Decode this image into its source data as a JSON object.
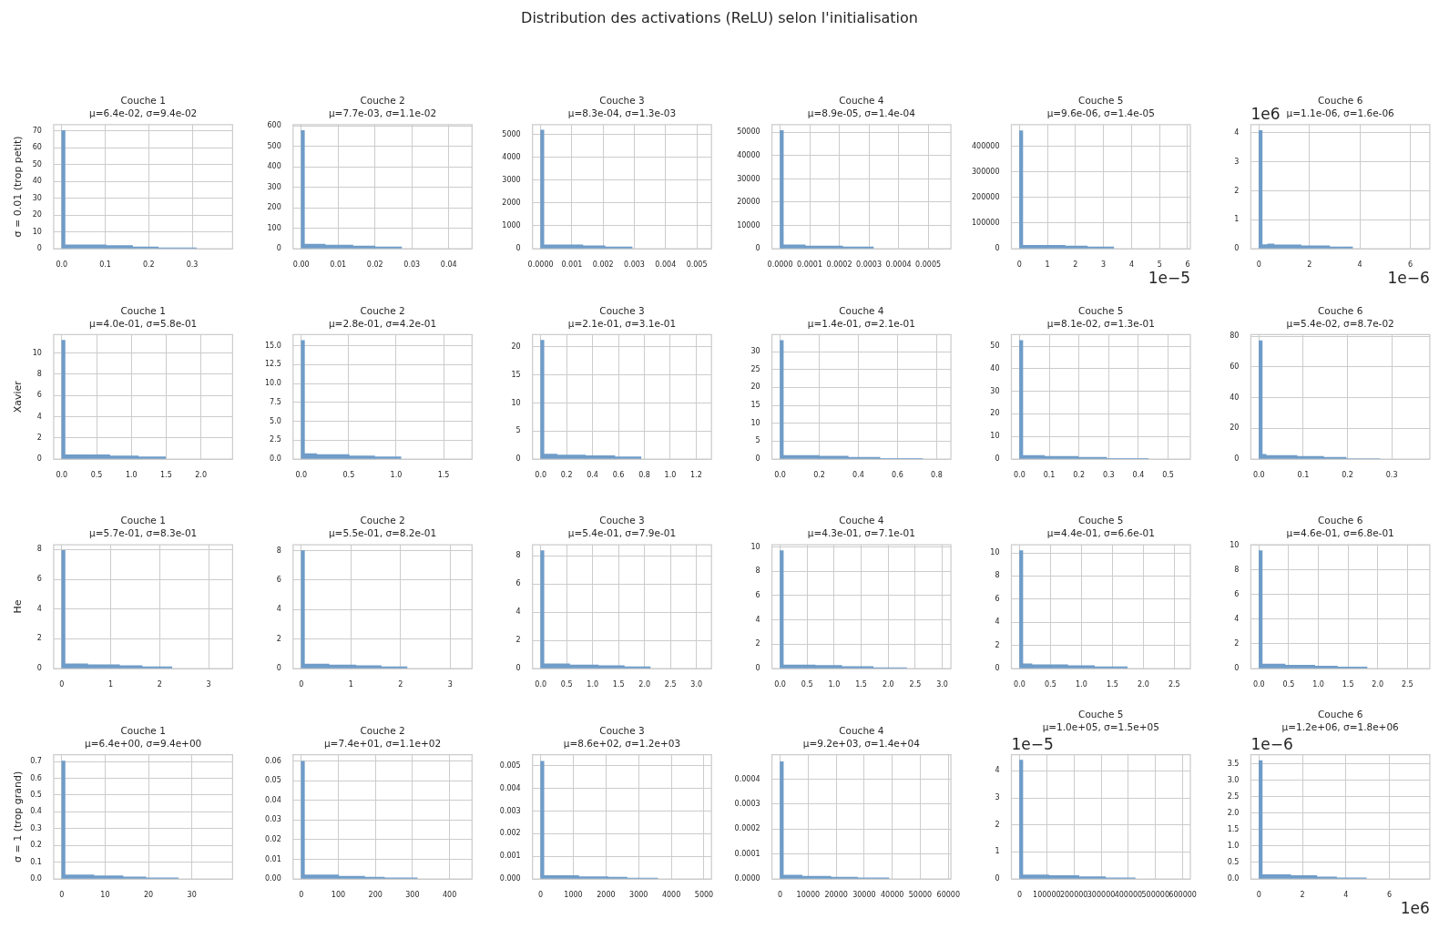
{
  "chart_data": [
    {
      "type": "other",
      "title": "Distribution des activations (ReLU) selon l'initialisation"
    },
    {
      "type": "histogram",
      "title": "Couche 1\nμ=6.4e-02, σ=9.4e-02",
      "ylabel": "σ = 0.01 (trop petit)",
      "bins": [
        0,
        0.0075,
        0.102,
        0.163,
        0.222,
        0.31
      ],
      "values": [
        70.3,
        2.3,
        1.8,
        1.1,
        0.5
      ],
      "color": "#6f9cc8",
      "xlim": [
        -0.0187,
        0.393
      ],
      "xticks": [
        {
          "value": 0,
          "label": "0.0"
        },
        0.1,
        0.2,
        0.3
      ],
      "ylim": [
        0,
        73.8
      ],
      "yticks": [
        0,
        10,
        20,
        30,
        40,
        50,
        60,
        70
      ],
      "grid": true
    },
    {
      "type": "histogram",
      "title": "Couche 2\nμ=7.7e-03, σ=1.1e-02",
      "bins": [
        0,
        0.00088,
        0.0065,
        0.014,
        0.02,
        0.0272
      ],
      "values": [
        578,
        22,
        18,
        13,
        9
      ],
      "color": "#6f9cc8",
      "xlim": [
        -0.0022,
        0.0463
      ],
      "xticks": [
        {
          "value": 0,
          "label": "0.00"
        },
        0.01,
        0.02,
        0.03,
        0.04
      ],
      "ylim": [
        0,
        607
      ],
      "yticks": [
        0,
        100,
        200,
        300,
        400,
        500,
        600
      ],
      "grid": true
    },
    {
      "type": "histogram",
      "title": "Couche 3\nμ=8.3e-04, σ=1.3e-03",
      "bins": [
        0,
        0.000104,
        0.00135,
        0.00206,
        0.00293
      ],
      "values": [
        5200,
        170,
        130,
        80
      ],
      "color": "#6f9cc8",
      "xlim": [
        -0.00026,
        0.00547
      ],
      "xticks": [
        {
          "value": 0,
          "label": "0.0000"
        },
        0.001,
        0.002,
        0.003,
        0.004,
        0.005
      ],
      "ylim": [
        0,
        5444
      ],
      "yticks": [
        0,
        1000,
        2000,
        3000,
        4000,
        5000
      ],
      "grid": true
    },
    {
      "type": "histogram",
      "title": "Couche 4\nμ=8.9e-05, σ=1.4e-04",
      "bins": [
        0,
        1.1e-05,
        8.5e-05,
        0.000211,
        0.000315
      ],
      "values": [
        50800,
        1600,
        1100,
        800
      ],
      "color": "#6f9cc8",
      "xlim": [
        -2.75e-05,
        0.000577
      ],
      "xticks": [
        {
          "value": 0,
          "label": "0.0000"
        },
        0.0001,
        0.0002,
        0.0003,
        0.0004,
        0.0005
      ],
      "ylim": [
        0,
        53360
      ],
      "yticks": [
        0,
        10000,
        20000,
        30000,
        40000,
        50000
      ],
      "grid": true
    },
    {
      "type": "histogram",
      "title": "Couche 5\nμ=9.6e-06, σ=1.4e-05",
      "xlabel": "1e−5",
      "bins": [
        0,
        0.116,
        1.63,
        2.42,
        3.36
      ],
      "values": [
        460000,
        13000,
        10000,
        7000
      ],
      "color": "#6f9cc8",
      "xlim": [
        -0.29,
        6.1
      ],
      "xticks": [
        0,
        1,
        2,
        3,
        4,
        5,
        6
      ],
      "ylim": [
        0,
        484300
      ],
      "yticks": [
        0,
        100000,
        200000,
        300000,
        400000
      ],
      "grid": true
    },
    {
      "type": "histogram",
      "title": "Couche 6\nμ=1.1e-06, σ=1.6e-06",
      "xlabel": "1e−6",
      "ylabel": "1e6",
      "bins": [
        0,
        0.129,
        0.35,
        0.6,
        1.67,
        2.8,
        3.71
      ],
      "values": [
        4.08,
        0.14,
        0.16,
        0.13,
        0.1,
        0.06
      ],
      "color": "#6f9cc8",
      "xlim": [
        -0.32,
        6.77
      ],
      "xticks": [
        0,
        2,
        4,
        6
      ],
      "ylim": [
        0,
        4.286
      ],
      "yticks": [
        0,
        1,
        2,
        3,
        4
      ],
      "grid": true
    },
    {
      "type": "histogram",
      "title": "Couche 1\nμ=4.0e-01, σ=5.8e-01",
      "ylabel": "Xavier",
      "bins": [
        0,
        0.0468,
        0.368,
        0.69,
        1.1,
        1.49
      ],
      "values": [
        11.2,
        0.4,
        0.4,
        0.3,
        0.2
      ],
      "color": "#6f9cc8",
      "xlim": [
        -0.117,
        2.455
      ],
      "xticks": [
        {
          "value": 0,
          "label": "0.0"
        },
        0.5,
        {
          "value": 1,
          "label": "1.0"
        },
        1.5,
        {
          "value": 2,
          "label": "2.0"
        }
      ],
      "ylim": [
        0,
        11.74
      ],
      "yticks": [
        0,
        2,
        4,
        6,
        8,
        10
      ],
      "grid": true
    },
    {
      "type": "histogram",
      "title": "Couche 2\nμ=2.8e-01, σ=4.2e-01",
      "bins": [
        0,
        0.0343,
        0.163,
        0.505,
        0.774,
        1.05
      ],
      "values": [
        15.7,
        0.7,
        0.6,
        0.4,
        0.3
      ],
      "color": "#6f9cc8",
      "xlim": [
        -0.086,
        1.8
      ],
      "xticks": [
        {
          "value": 0,
          "label": "0.0"
        },
        0.5,
        {
          "value": 1,
          "label": "1.0"
        },
        1.5
      ],
      "ylim": [
        0,
        16.46
      ],
      "yticks": [
        {
          "value": 0,
          "label": "0.0"
        },
        2.5,
        {
          "value": 5,
          "label": "5.0"
        },
        7.5,
        {
          "value": 10,
          "label": "10.0"
        },
        12.5,
        {
          "value": 15,
          "label": "15.0"
        }
      ],
      "grid": true
    },
    {
      "type": "histogram",
      "title": "Couche 3\nμ=2.1e-01, σ=3.1e-01",
      "bins": [
        0,
        0.0251,
        0.126,
        0.345,
        0.572,
        0.774
      ],
      "values": [
        21.2,
        0.9,
        0.7,
        0.6,
        0.4
      ],
      "color": "#6f9cc8",
      "xlim": [
        -0.063,
        1.318
      ],
      "xticks": [
        {
          "value": 0,
          "label": "0.0"
        },
        0.2,
        0.4,
        0.6,
        0.8,
        {
          "value": 1,
          "label": "1.0"
        },
        1.2
      ],
      "ylim": [
        0,
        22.2
      ],
      "yticks": [
        0,
        5,
        10,
        15,
        20
      ],
      "grid": true
    },
    {
      "type": "histogram",
      "title": "Couche 4\nμ=1.4e-01, σ=2.1e-01",
      "bins": [
        0,
        0.0166,
        0.2,
        0.348,
        0.51,
        0.728
      ],
      "values": [
        33.1,
        1,
        0.8,
        0.5,
        0.2
      ],
      "color": "#6f9cc8",
      "xlim": [
        -0.0415,
        0.873
      ],
      "xticks": [
        {
          "value": 0,
          "label": "0.0"
        },
        0.2,
        0.4,
        0.6,
        0.8
      ],
      "ylim": [
        0,
        34.75
      ],
      "yticks": [
        0,
        5,
        10,
        15,
        20,
        25,
        30
      ],
      "grid": true
    },
    {
      "type": "histogram",
      "title": "Couche 5\nμ=8.1e-02, σ=1.3e-01",
      "bins": [
        0,
        0.011,
        0.084,
        0.197,
        0.293,
        0.433
      ],
      "values": [
        52.5,
        1.6,
        1.2,
        0.8,
        0.3
      ],
      "color": "#6f9cc8",
      "xlim": [
        -0.0274,
        0.575
      ],
      "xticks": [
        {
          "value": 0,
          "label": "0.0"
        },
        0.1,
        0.2,
        0.3,
        0.4,
        0.5
      ],
      "ylim": [
        0,
        55.1
      ],
      "yticks": [
        0,
        10,
        20,
        30,
        40,
        50
      ],
      "grid": true
    },
    {
      "type": "histogram",
      "title": "Couche 6\nμ=5.4e-02, σ=8.7e-02",
      "bins": [
        0,
        0.00736,
        0.016,
        0.086,
        0.146,
        0.197,
        0.273
      ],
      "values": [
        77.2,
        3,
        2.4,
        1.8,
        1.2,
        0.3
      ],
      "color": "#6f9cc8",
      "xlim": [
        -0.0184,
        0.386
      ],
      "xticks": [
        {
          "value": 0,
          "label": "0.0"
        },
        0.1,
        0.2,
        0.3
      ],
      "ylim": [
        0,
        81.1
      ],
      "yticks": [
        0,
        20,
        40,
        60,
        80
      ],
      "grid": true
    },
    {
      "type": "histogram",
      "title": "Couche 1\nμ=5.7e-01, σ=8.3e-01",
      "ylabel": "He",
      "bins": [
        0,
        0.0665,
        0.53,
        1.18,
        1.64,
        2.25
      ],
      "values": [
        7.94,
        0.31,
        0.25,
        0.19,
        0.12
      ],
      "color": "#6f9cc8",
      "xlim": [
        -0.166,
        3.49
      ],
      "xticks": [
        0,
        1,
        2,
        3
      ],
      "ylim": [
        0,
        8.33
      ],
      "yticks": [
        0,
        2,
        4,
        6,
        8
      ],
      "grid": true
    },
    {
      "type": "histogram",
      "title": "Couche 2\nμ=5.5e-01, σ=8.2e-01",
      "bins": [
        0,
        0.0656,
        0.56,
        1.1,
        1.61,
        2.13
      ],
      "values": [
        8.01,
        0.31,
        0.25,
        0.19,
        0.12
      ],
      "color": "#6f9cc8",
      "xlim": [
        -0.164,
        3.44
      ],
      "xticks": [
        0,
        1,
        2,
        3
      ],
      "ylim": [
        0,
        8.41
      ],
      "yticks": [
        0,
        2,
        4,
        6,
        8
      ],
      "grid": true
    },
    {
      "type": "histogram",
      "title": "Couche 3\nμ=5.4e-01, σ=7.9e-01",
      "bins": [
        0,
        0.0629,
        0.56,
        1.11,
        1.61,
        2.11
      ],
      "values": [
        8.36,
        0.33,
        0.26,
        0.2,
        0.13
      ],
      "color": "#6f9cc8",
      "xlim": [
        -0.157,
        3.29
      ],
      "xticks": [
        {
          "value": 0,
          "label": "0.0"
        },
        0.5,
        {
          "value": 1,
          "label": "1.0"
        },
        1.5,
        {
          "value": 2,
          "label": "2.0"
        },
        2.5,
        {
          "value": 3,
          "label": "3.0"
        }
      ],
      "ylim": [
        0,
        8.78
      ],
      "yticks": [
        0,
        2,
        4,
        6,
        8
      ],
      "grid": true
    },
    {
      "type": "histogram",
      "title": "Couche 4\nμ=4.3e-01, σ=7.1e-01",
      "bins": [
        0,
        0.0602,
        0.65,
        1.14,
        1.72,
        2.34
      ],
      "values": [
        9.7,
        0.3,
        0.25,
        0.17,
        0.07
      ],
      "color": "#6f9cc8",
      "xlim": [
        -0.15,
        3.16
      ],
      "xticks": [
        {
          "value": 0,
          "label": "0.0"
        },
        0.5,
        {
          "value": 1,
          "label": "1.0"
        },
        1.5,
        {
          "value": 2,
          "label": "2.0"
        },
        2.5,
        {
          "value": 3,
          "label": "3.0"
        }
      ],
      "ylim": [
        0,
        10.19
      ],
      "yticks": [
        0,
        2,
        4,
        6,
        8,
        10
      ],
      "grid": true
    },
    {
      "type": "histogram",
      "title": "Couche 5\nμ=4.4e-01, σ=6.6e-01",
      "bins": [
        0,
        0.0526,
        0.2,
        0.78,
        1.21,
        1.74
      ],
      "values": [
        10.2,
        0.4,
        0.32,
        0.24,
        0.16
      ],
      "color": "#6f9cc8",
      "xlim": [
        -0.132,
        2.76
      ],
      "xticks": [
        {
          "value": 0,
          "label": "0.0"
        },
        0.5,
        {
          "value": 1,
          "label": "1.0"
        },
        1.5,
        {
          "value": 2,
          "label": "2.0"
        },
        2.5
      ],
      "ylim": [
        0,
        10.71
      ],
      "yticks": [
        0,
        2,
        4,
        6,
        8,
        10
      ],
      "grid": true
    },
    {
      "type": "histogram",
      "title": "Couche 6\nμ=4.6e-01, σ=6.8e-01",
      "bins": [
        0,
        0.0548,
        0.44,
        0.94,
        1.32,
        1.82
      ],
      "values": [
        9.56,
        0.37,
        0.28,
        0.2,
        0.13
      ],
      "color": "#6f9cc8",
      "xlim": [
        -0.137,
        2.877
      ],
      "xticks": [
        {
          "value": 0,
          "label": "0.0"
        },
        0.5,
        {
          "value": 1,
          "label": "1.0"
        },
        1.5,
        {
          "value": 2,
          "label": "2.0"
        },
        2.5
      ],
      "ylim": [
        0,
        10.04
      ],
      "yticks": [
        0,
        2,
        4,
        6,
        8,
        10
      ],
      "grid": true
    },
    {
      "type": "histogram",
      "title": "Couche 1\nμ=6.4e+00, σ=9.4e+00",
      "ylabel": "σ = 1 (trop grand)",
      "bins": [
        0,
        0.75,
        7.4,
        14.1,
        19.4,
        26.9
      ],
      "values": [
        0.702,
        0.024,
        0.018,
        0.012,
        0.006
      ],
      "color": "#6f9cc8",
      "xlim": [
        -1.88,
        39.4
      ],
      "xticks": [
        0,
        10,
        20,
        30
      ],
      "ylim": [
        0,
        0.7405
      ],
      "yticks": [
        {
          "value": 0,
          "label": "0.0"
        },
        0.1,
        0.2,
        0.3,
        0.4,
        0.5,
        0.6,
        0.7
      ],
      "grid": true
    },
    {
      "type": "histogram",
      "title": "Couche 2\nμ=7.4e+01, σ=1.1e+02",
      "bins": [
        0,
        8.77,
        101,
        171,
        224,
        313
      ],
      "values": [
        0.06,
        0.002,
        0.0014,
        0.0009,
        0.0005
      ],
      "color": "#6f9cc8",
      "xlim": [
        -21.9,
        460.5
      ],
      "xticks": [
        0,
        100,
        200,
        300,
        400
      ],
      "ylim": [
        0,
        0.0633
      ],
      "yticks": [
        {
          "value": 0,
          "label": "0.00"
        },
        0.01,
        0.02,
        0.03,
        0.04,
        0.05,
        0.06
      ],
      "grid": true
    },
    {
      "type": "histogram",
      "title": "Couche 3\nμ=8.6e+02, σ=1.2e+03",
      "bins": [
        0,
        99.6,
        1166,
        2065,
        2640,
        3580
      ],
      "values": [
        0.0052,
        0.00015,
        0.0001,
        8e-05,
        4e-05
      ],
      "color": "#6f9cc8",
      "xlim": [
        -249,
        5229
      ],
      "xticks": [
        0,
        1000,
        2000,
        3000,
        4000,
        5000
      ],
      "ylim": [
        0,
        0.00549
      ],
      "yticks": [
        {
          "value": 0,
          "label": "0.000"
        },
        0.001,
        0.002,
        0.003,
        0.004,
        0.005
      ],
      "grid": true
    },
    {
      "type": "histogram",
      "title": "Couche 4\nμ=9.2e+03, σ=1.4e+04",
      "bins": [
        0,
        1162,
        7830,
        18100,
        27550,
        38800
      ],
      "values": [
        0.00047,
        1.5e-05,
        1.1e-05,
        7e-06,
        4e-06
      ],
      "color": "#6f9cc8",
      "xlim": [
        -2905,
        60920
      ],
      "xticks": [
        0,
        10000,
        20000,
        30000,
        40000,
        50000,
        60000
      ],
      "ylim": [
        0,
        0.000498
      ],
      "yticks": [
        {
          "value": 0,
          "label": "0.0000"
        },
        0.0001,
        0.0002,
        0.0003,
        0.0004
      ],
      "grid": true
    },
    {
      "type": "histogram",
      "title": "Couche 5\nμ=1.0e+05, σ=1.5e+05",
      "ylabel": "1e−5",
      "bins": [
        0,
        11960,
        108000,
        218000,
        316000,
        425000
      ],
      "values": [
        4.4,
        0.15,
        0.12,
        0.08,
        0.04
      ],
      "color": "#6f9cc8",
      "xlim": [
        -30000,
        628000
      ],
      "xticks": [
        0,
        100000,
        200000,
        300000,
        400000,
        500000,
        600000
      ],
      "ylim": [
        0,
        4.6
      ],
      "yticks": [
        0,
        1,
        2,
        3,
        4
      ],
      "grid": true
    },
    {
      "type": "histogram",
      "title": "Couche 6\nμ=1.2e+06, σ=1.8e+06",
      "ylabel": "1e−6",
      "xlabel": "1e6",
      "bins": [
        0,
        0.1498,
        1.46,
        2.66,
        3.57,
        4.94
      ],
      "values": [
        3.6,
        0.13,
        0.1,
        0.06,
        0.03
      ],
      "color": "#6f9cc8",
      "xlim": [
        -0.375,
        7.86
      ],
      "xticks": [
        0,
        2,
        4,
        6
      ],
      "ylim": [
        0,
        3.78
      ],
      "yticks": [
        {
          "value": 0,
          "label": "0.0"
        },
        0.5,
        {
          "value": 1,
          "label": "1.0"
        },
        1.5,
        {
          "value": 2,
          "label": "2.0"
        },
        2.5,
        {
          "value": 3,
          "label": "3.0"
        },
        3.5
      ],
      "grid": true
    }
  ]
}
